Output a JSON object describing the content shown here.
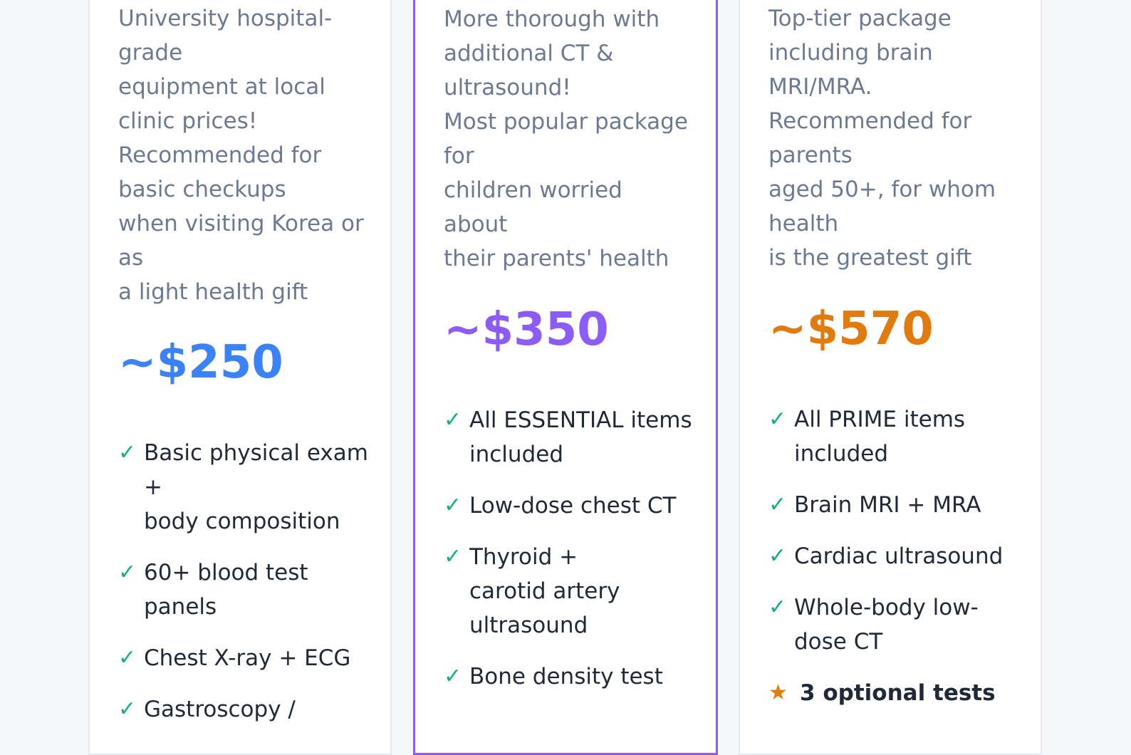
{
  "colors": {
    "essential_accent": "#3b82f6",
    "prime_accent": "#8b5cf6",
    "premium_accent": "#e07b10",
    "check": "#16b07a",
    "description_text": "#6b7a90",
    "feature_text": "#1f2937"
  },
  "icons": {
    "check": "check-icon",
    "star": "star-icon"
  },
  "cards": {
    "essential": {
      "description": [
        "University hospital-",
        "grade",
        "equipment at local",
        "clinic prices!",
        "Recommended for",
        "basic checkups",
        "when visiting Korea or",
        "as",
        "a light health gift"
      ],
      "price": "~$250",
      "features": [
        [
          "Basic physical exam",
          "+",
          "body composition"
        ],
        [
          "60+ blood test",
          "panels"
        ],
        [
          "Chest X-ray + ECG"
        ],
        [
          "Gastroscopy /"
        ]
      ]
    },
    "prime": {
      "description": [
        "More thorough with",
        "additional CT &",
        "ultrasound!",
        "Most popular package",
        "for",
        "children worried",
        "about",
        "their parents' health"
      ],
      "price": "~$350",
      "features": [
        [
          "All ESSENTIAL items",
          "included"
        ],
        [
          "Low-dose chest CT"
        ],
        [
          "Thyroid +",
          "carotid artery",
          "ultrasound"
        ],
        [
          "Bone density test"
        ]
      ]
    },
    "premium": {
      "description": [
        "Top-tier package",
        "including brain",
        "MRI/MRA.",
        "Recommended for",
        "parents",
        "aged 50+, for whom",
        "health",
        "is the greatest gift"
      ],
      "price": "~$570",
      "features": [
        [
          "All PRIME items",
          "included"
        ],
        [
          "Brain MRI + MRA"
        ],
        [
          "Cardiac ultrasound"
        ],
        [
          "Whole-body low-",
          "dose CT"
        ]
      ],
      "highlight": "3 optional tests"
    }
  }
}
